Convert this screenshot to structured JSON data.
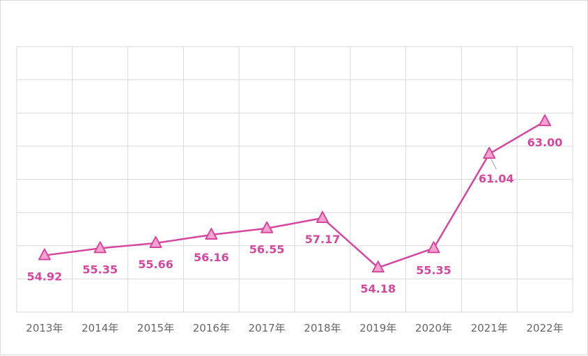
{
  "chart_data": {
    "type": "line",
    "categories": [
      "2013年",
      "2014年",
      "2015年",
      "2016年",
      "2017年",
      "2018年",
      "2019年",
      "2020年",
      "2021年",
      "2022年"
    ],
    "series": [
      {
        "values": [
          54.92,
          55.35,
          55.66,
          56.16,
          56.55,
          57.17,
          54.18,
          55.35,
          61.04,
          63.0
        ],
        "labels": [
          "54.92",
          "55.35",
          "55.66",
          "56.16",
          "56.55",
          "57.17",
          "54.18",
          "55.35",
          "61.04",
          "63.00"
        ],
        "color": "#d5479e",
        "marker": "triangle",
        "marker_fill": "#f4a3d0"
      }
    ],
    "ylim": [
      51.5,
      67.5
    ],
    "grid": true,
    "gridColor": "#d9d9d9",
    "tickColor": "#666666",
    "legend": "none"
  }
}
